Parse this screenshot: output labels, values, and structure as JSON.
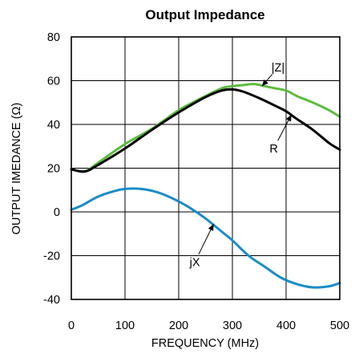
{
  "chart_data": {
    "type": "line",
    "title": "Output Impedance",
    "xlabel": "FREQUENCY (MHz)",
    "ylabel": "OUTPUT IMEDANCE (Ω)",
    "xlim": [
      0,
      500
    ],
    "ylim": [
      -40,
      80
    ],
    "x_ticks": [
      0,
      100,
      200,
      300,
      400,
      500
    ],
    "x_tick_labels": [
      "0",
      "100",
      "200",
      "300",
      "400",
      "500"
    ],
    "y_ticks": [
      -40,
      -20,
      0,
      20,
      40,
      60,
      80
    ],
    "y_tick_labels": [
      "-40",
      "-20",
      "0",
      "20",
      "40",
      "60",
      "80"
    ],
    "grid": true,
    "legend": "none",
    "series": [
      {
        "name": "|Z|",
        "color": "#5DBB3F",
        "x": [
          0,
          25,
          50,
          100,
          150,
          200,
          230,
          250,
          280,
          300,
          320,
          340,
          360,
          380,
          400,
          420,
          450,
          480,
          500
        ],
        "y": [
          19.5,
          18.5,
          22.5,
          31,
          38,
          46.5,
          50.5,
          53,
          56.5,
          57.5,
          58,
          58.5,
          57.5,
          56.5,
          55.5,
          53,
          50,
          46.5,
          43.5
        ]
      },
      {
        "name": "R",
        "color": "#000000",
        "x": [
          0,
          25,
          50,
          100,
          150,
          200,
          250,
          280,
          300,
          320,
          350,
          380,
          400,
          420,
          450,
          480,
          500
        ],
        "y": [
          19.5,
          18.5,
          21.5,
          29,
          37.5,
          45.5,
          52.5,
          55.5,
          56,
          55,
          52,
          48.5,
          46,
          42.5,
          37.5,
          31.5,
          28.5
        ]
      },
      {
        "name": "jX",
        "color": "#1A8CC7",
        "x": [
          0,
          20,
          50,
          80,
          100,
          130,
          160,
          190,
          220,
          250,
          280,
          300,
          330,
          360,
          390,
          420,
          450,
          480,
          500
        ],
        "y": [
          1,
          3,
          7,
          9.5,
          10.5,
          10.5,
          9,
          6,
          2,
          -3,
          -9,
          -13,
          -20,
          -25,
          -30,
          -33,
          -34.5,
          -34,
          -32.5
        ]
      }
    ],
    "annotations": [
      {
        "text": "|Z|",
        "color": "#000000",
        "label_x": 385,
        "label_y": 66,
        "arrow_to_x": 355,
        "arrow_to_y": 57.5
      },
      {
        "text": "R",
        "color": "#000000",
        "label_x": 377,
        "label_y": 29,
        "arrow_to_x": 410,
        "arrow_to_y": 44.5
      },
      {
        "text": "jX",
        "color": "#000000",
        "label_x": 230,
        "label_y": -23,
        "arrow_to_x": 265,
        "arrow_to_y": -5.5
      }
    ]
  }
}
